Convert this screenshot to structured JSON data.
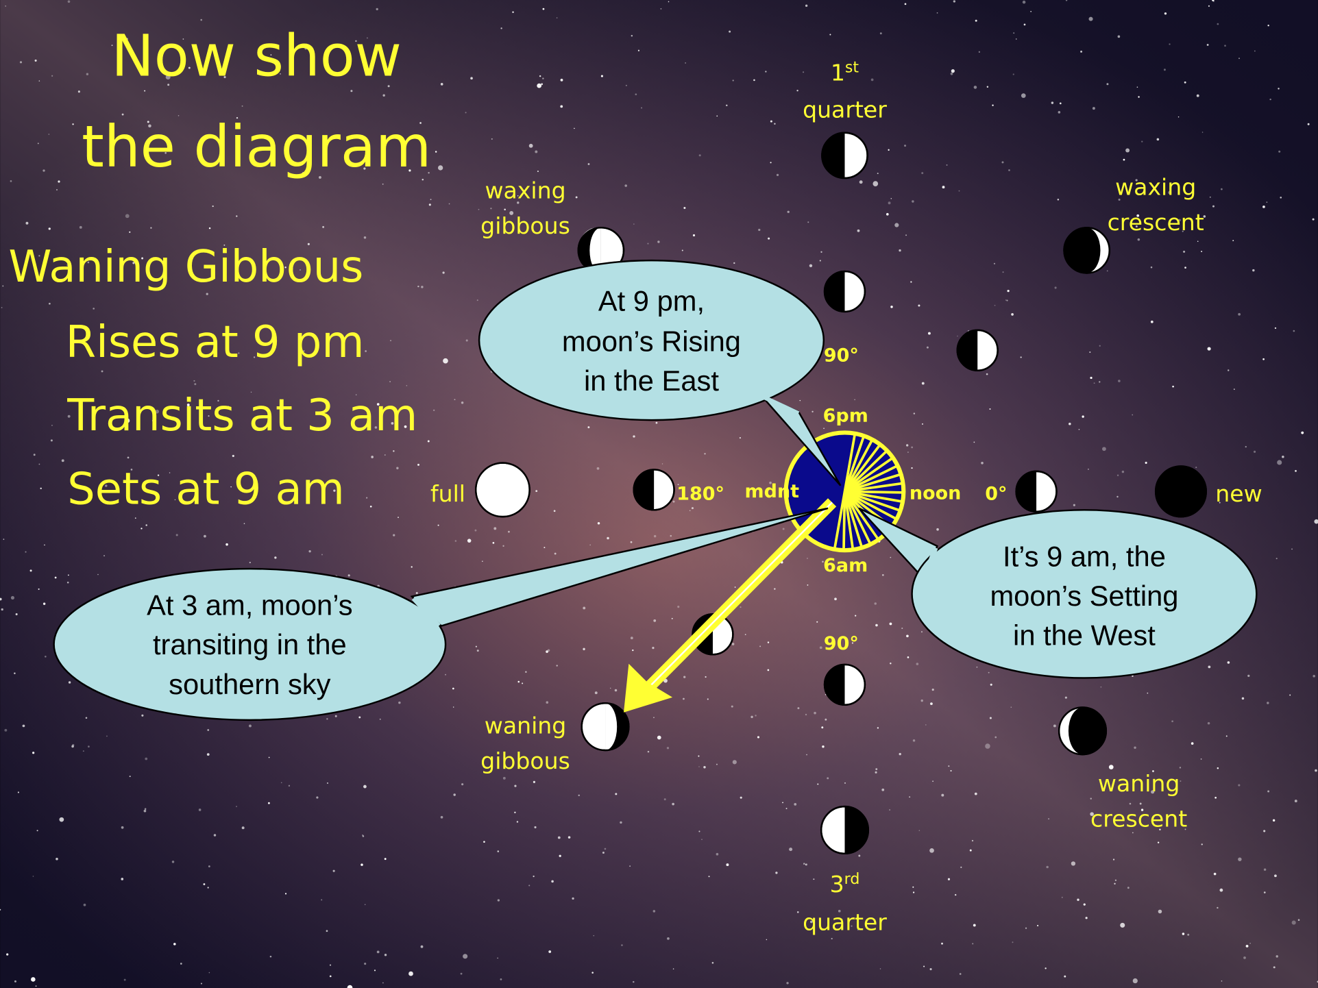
{
  "title": [
    "Now show",
    "the diagram"
  ],
  "phase": {
    "name": "Waning Gibbous",
    "rises": "Rises at 9 pm",
    "transits": "Transits at 3 am",
    "sets": "Sets at 9 am"
  },
  "moon_labels": {
    "first_quarter": {
      "number": "1",
      "suffix": "st",
      "word": "quarter"
    },
    "third_quarter": {
      "number": "3",
      "suffix": "rd",
      "word": "quarter"
    },
    "waxing_gibbous": [
      "waxing",
      "gibbous"
    ],
    "waxing_crescent": [
      "waxing",
      "crescent"
    ],
    "waning_gibbous": [
      "waning",
      "gibbous"
    ],
    "waning_crescent": [
      "waning",
      "crescent"
    ],
    "full": "full",
    "new": "new"
  },
  "angles": {
    "top": "90°",
    "left": "180°",
    "right": "0°",
    "bottom": "90°"
  },
  "times": {
    "top": "6pm",
    "left": "mdnt",
    "right": "noon",
    "bottom": "6am"
  },
  "callouts": [
    {
      "lines": [
        "At 9 pm,",
        "moon’s Rising",
        "in the East"
      ]
    },
    {
      "lines": [
        "At 3 am, moon’s",
        "transiting in the",
        "southern sky"
      ]
    },
    {
      "lines": [
        "It’s 9 am, the",
        "moon’s Setting",
        "in the West"
      ]
    }
  ]
}
